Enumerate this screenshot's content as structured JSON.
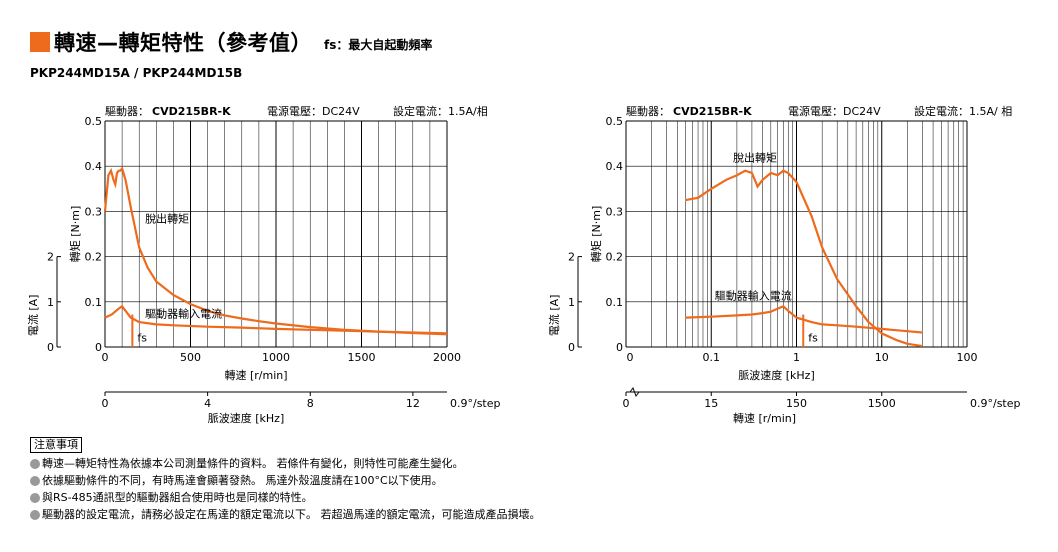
{
  "header": {
    "title": "轉速—轉矩特性（參考值）",
    "fs_note": "fs：最大自起動頻率"
  },
  "models": "PKP244MD15A / PKP244MD15B",
  "colors": {
    "accent": "#ee6a1c",
    "curve": "#ee6a1c",
    "grid": "#000000"
  },
  "chart_data": [
    {
      "type": "line",
      "condition": {
        "driver_label": "驅動器：",
        "driver": "CVD215BR-K",
        "voltage": "電源電壓：DC24V",
        "current": "設定電流：1.5A/相"
      },
      "xlabel": "轉速 [r/min]",
      "xlim": [
        0,
        2000
      ],
      "xticks": [
        "0",
        "500",
        "1000",
        "1500",
        "2000"
      ],
      "ylabel": "轉矩 [N·m]",
      "ylim": [
        0,
        0.5
      ],
      "yticks": [
        "0",
        "0.1",
        "0.2",
        "0.3",
        "0.4",
        "0.5"
      ],
      "y2label": "電流 [A]",
      "y2ticks": [
        "0",
        "1",
        "2"
      ],
      "x2label": "脈波速度 [kHz]",
      "x2ticks": [
        "0",
        "4",
        "8",
        "12"
      ],
      "x2_step": "0.9°/step",
      "series": [
        {
          "name": "脫出轉矩",
          "x": [
            0,
            20,
            35,
            50,
            60,
            70,
            80,
            90,
            100,
            120,
            150,
            200,
            250,
            300,
            400,
            500,
            600,
            700,
            800,
            900,
            1000,
            1200,
            1400,
            1600,
            1800,
            2000
          ],
          "y": [
            0.3,
            0.38,
            0.39,
            0.37,
            0.36,
            0.385,
            0.39,
            0.39,
            0.395,
            0.37,
            0.31,
            0.22,
            0.175,
            0.145,
            0.115,
            0.095,
            0.08,
            0.07,
            0.063,
            0.057,
            0.052,
            0.044,
            0.038,
            0.034,
            0.031,
            0.028
          ]
        },
        {
          "name": "驅動器輸入電流",
          "x": [
            0,
            40,
            80,
            100,
            120,
            150,
            200,
            300,
            400,
            600,
            800,
            1000,
            1200,
            1500,
            2000
          ],
          "y": [
            0.065,
            0.072,
            0.085,
            0.09,
            0.08,
            0.065,
            0.055,
            0.05,
            0.048,
            0.045,
            0.043,
            0.04,
            0.038,
            0.035,
            0.03
          ]
        }
      ],
      "fs_label": "fs",
      "fs_x": 160
    },
    {
      "type": "line",
      "condition": {
        "driver_label": "驅動器：",
        "driver": "CVD215BR-K",
        "voltage": "電源電壓：DC24V",
        "current": "設定電流：1.5A/ 相"
      },
      "xlabel": "脈波速度 [kHz]",
      "xscale": "log",
      "xlim": [
        0.01,
        100
      ],
      "xticks": [
        "0",
        "0.1",
        "1",
        "10",
        "100"
      ],
      "ylabel": "轉矩 [N·m]",
      "ylim": [
        0,
        0.5
      ],
      "yticks": [
        "0",
        "0.1",
        "0.2",
        "0.3",
        "0.4",
        "0.5"
      ],
      "y2label": "電流 [A]",
      "y2ticks": [
        "0",
        "1",
        "2"
      ],
      "x2label": "轉速 [r/min]",
      "x2ticks": [
        "0",
        "15",
        "150",
        "1500"
      ],
      "x2_step": "0.9°/step",
      "series": [
        {
          "name": "脫出轉矩",
          "x": [
            0.05,
            0.07,
            0.1,
            0.15,
            0.2,
            0.25,
            0.3,
            0.35,
            0.4,
            0.5,
            0.6,
            0.7,
            0.8,
            1,
            1.5,
            2,
            3,
            5,
            7,
            10,
            15,
            20,
            30
          ],
          "y": [
            0.325,
            0.33,
            0.35,
            0.37,
            0.38,
            0.39,
            0.385,
            0.355,
            0.37,
            0.385,
            0.38,
            0.39,
            0.385,
            0.365,
            0.29,
            0.22,
            0.15,
            0.09,
            0.055,
            0.03,
            0.015,
            0.007,
            0.002
          ]
        },
        {
          "name": "驅動器輸入電流",
          "x": [
            0.05,
            0.1,
            0.2,
            0.3,
            0.4,
            0.5,
            0.6,
            0.7,
            0.8,
            1,
            1.5,
            2,
            3,
            5,
            10,
            20,
            30
          ],
          "y": [
            0.065,
            0.067,
            0.07,
            0.072,
            0.075,
            0.078,
            0.085,
            0.09,
            0.08,
            0.065,
            0.055,
            0.05,
            0.048,
            0.045,
            0.04,
            0.035,
            0.032
          ]
        }
      ],
      "fs_label": "fs",
      "fs_x": 1.2
    }
  ],
  "notes": {
    "title": "注意事項",
    "items": [
      "轉速—轉矩特性為依據本公司測量條件的資料。 若條件有變化，則特性可能產生變化。",
      "依據驅動條件的不同，有時馬達會顯著發熱。 馬達外殼溫度請在100°C以下使用。",
      "與RS-485通訊型的驅動器組合使用時也是同樣的特性。",
      "驅動器的設定電流，請務必設定在馬達的額定電流以下。 若超過馬達的額定電流，可能造成產品損壞。"
    ]
  }
}
